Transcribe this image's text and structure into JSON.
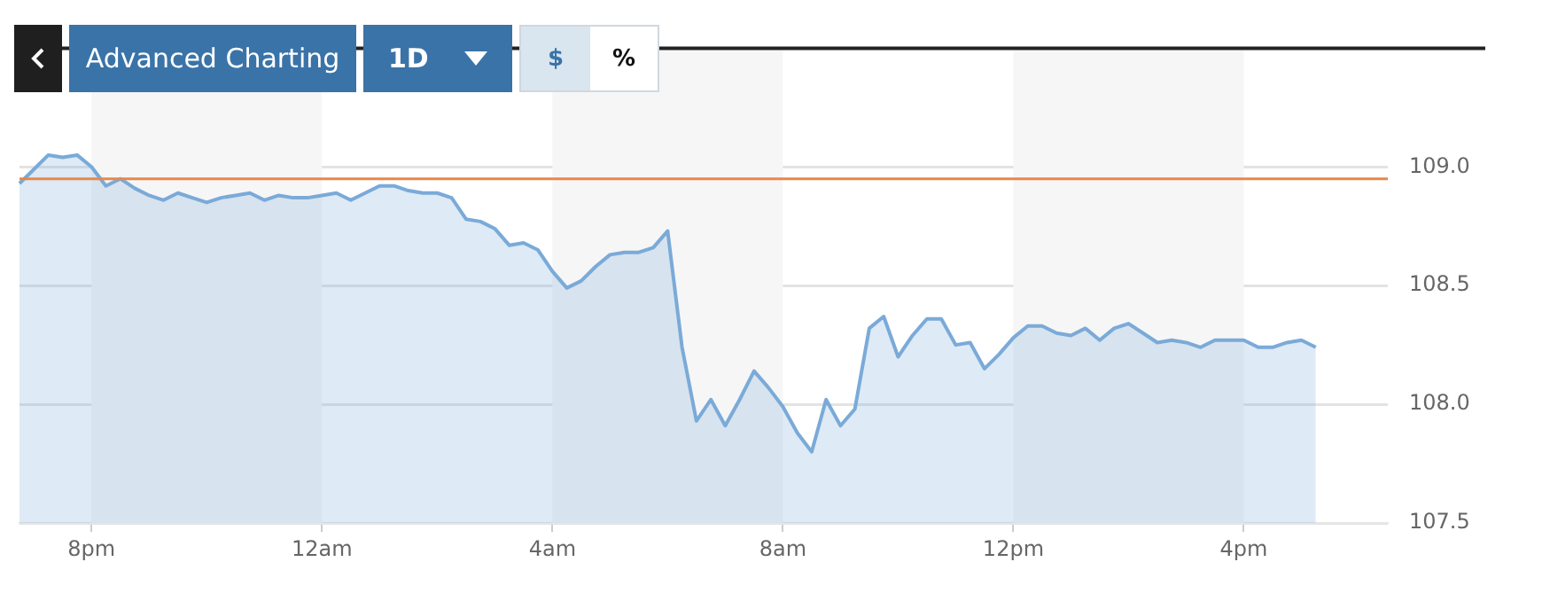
{
  "chart_data": {
    "type": "area",
    "annotations": [
      "Advanced Charting",
      "1D",
      "$",
      "%"
    ],
    "categories": [
      null,
      null,
      null,
      null,
      null,
      "8pm",
      null,
      null,
      null,
      null,
      null,
      null,
      null,
      null,
      null,
      null,
      null,
      null,
      null,
      null,
      null,
      "12am",
      null,
      null,
      null,
      null,
      null,
      null,
      null,
      null,
      null,
      null,
      null,
      null,
      null,
      null,
      null,
      "4am",
      null,
      null,
      null,
      null,
      null,
      null,
      null,
      null,
      null,
      null,
      null,
      null,
      null,
      null,
      null,
      "8am",
      null,
      null,
      null,
      null,
      null,
      null,
      null,
      null,
      null,
      null,
      null,
      null,
      null,
      null,
      null,
      "12pm",
      null,
      null,
      null,
      null,
      null,
      null,
      null,
      null,
      null,
      null,
      null,
      null,
      null,
      null,
      null,
      "4pm",
      null,
      null,
      null,
      null,
      null,
      null,
      null,
      null,
      null,
      null
    ],
    "series": [
      {
        "color": "#7aaad8",
        "values": [
          108.93,
          108.99,
          109.05,
          109.04,
          109.05,
          109.0,
          108.92,
          108.95,
          108.91,
          108.88,
          108.86,
          108.89,
          108.87,
          108.85,
          108.87,
          108.88,
          108.89,
          108.86,
          108.88,
          108.87,
          108.87,
          108.88,
          108.89,
          108.86,
          108.89,
          108.92,
          108.92,
          108.9,
          108.89,
          108.89,
          108.87,
          108.78,
          108.77,
          108.74,
          108.67,
          108.68,
          108.65,
          108.56,
          108.49,
          108.52,
          108.58,
          108.63,
          108.64,
          108.64,
          108.66,
          108.73,
          108.24,
          107.93,
          108.02,
          107.91,
          108.02,
          108.14,
          108.07,
          107.99,
          107.88,
          107.8,
          108.02,
          107.91,
          107.98,
          108.32,
          108.37,
          108.2,
          108.29,
          108.36,
          108.36,
          108.25,
          108.26,
          108.15,
          108.21,
          108.28,
          108.33,
          108.33,
          108.3,
          108.29,
          108.32,
          108.27,
          108.32,
          108.34,
          108.3,
          108.26,
          108.27,
          108.26,
          108.24,
          108.27,
          108.27,
          108.27,
          108.24,
          108.24,
          108.26,
          108.27,
          108.24,
          null,
          null,
          null,
          null,
          null
        ]
      }
    ],
    "ylim": [
      107.5,
      109.5
    ],
    "yticks": [
      107.5,
      {
        "value": 108,
        "label": "108.0"
      },
      108.5,
      {
        "value": 109,
        "label": "109.0"
      }
    ],
    "grid": "y",
    "legend": false,
    "ref_lines": [
      {
        "axis": "y",
        "value": 108.95,
        "color": "#e8874a"
      }
    ],
    "bands": [
      {
        "axis": "x",
        "from": "8pm",
        "to": "12am",
        "color": "#f6f6f6"
      },
      {
        "axis": "x",
        "from": "4am",
        "to": "8am",
        "color": "#f6f6f6"
      },
      {
        "axis": "x",
        "from": "12pm",
        "to": "4pm",
        "color": "#f6f6f6"
      }
    ]
  }
}
